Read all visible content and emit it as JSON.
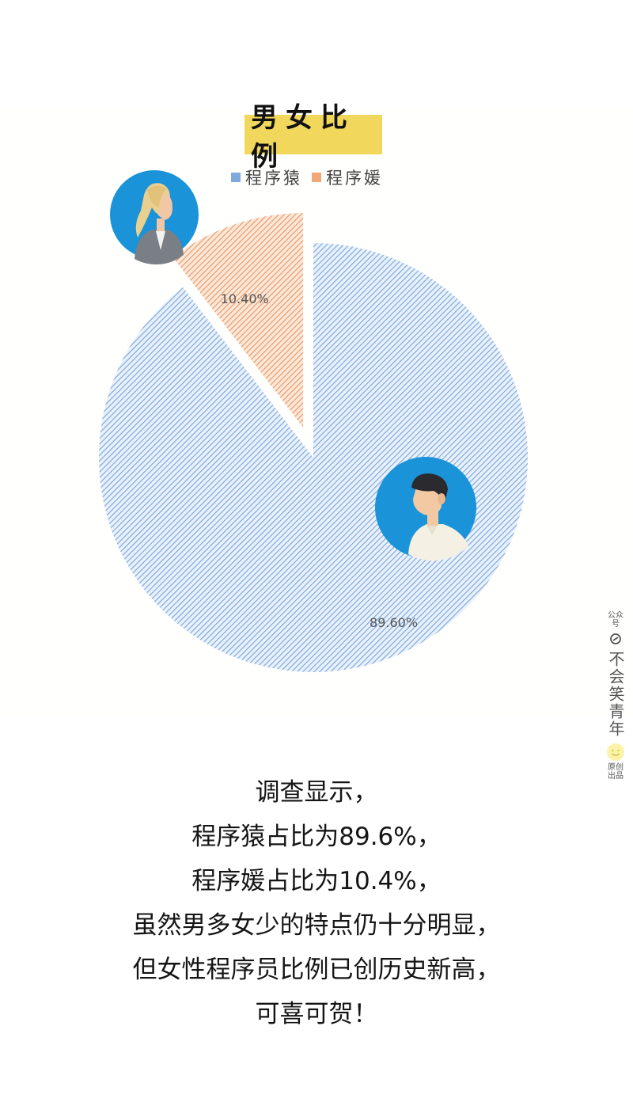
{
  "chart_data": {
    "type": "pie",
    "title": "男女比例",
    "legend": [
      "程序猿",
      "程序媛"
    ],
    "legend_placement": "top",
    "slices": [
      {
        "name": "程序猿",
        "value": 89.6,
        "label": "89.60%",
        "color": "#7fa9dc",
        "exploded": false
      },
      {
        "name": "程序媛",
        "value": 10.4,
        "label": "10.40%",
        "color": "#f0a878",
        "exploded": true
      }
    ]
  },
  "caption": {
    "lines": [
      "调查显示，",
      "程序猿占比为89.6%，",
      "程序媛占比为10.4%，",
      "虽然男多女少的特点仍十分明显，",
      "但女性程序员比例已创历史新高，",
      "可喜可贺！"
    ]
  },
  "watermark": {
    "top_label": "公众号",
    "name": "不会笑青年",
    "bottom_label": "原创出品"
  },
  "icons": {
    "female": "female-programmer-avatar-icon",
    "male": "male-programmer-avatar-icon"
  },
  "colors": {
    "title_bg": "#f1d75b",
    "avatar_bg": "#1a93d8",
    "male_slice": "#7fa9dc",
    "female_slice": "#f0a878"
  }
}
